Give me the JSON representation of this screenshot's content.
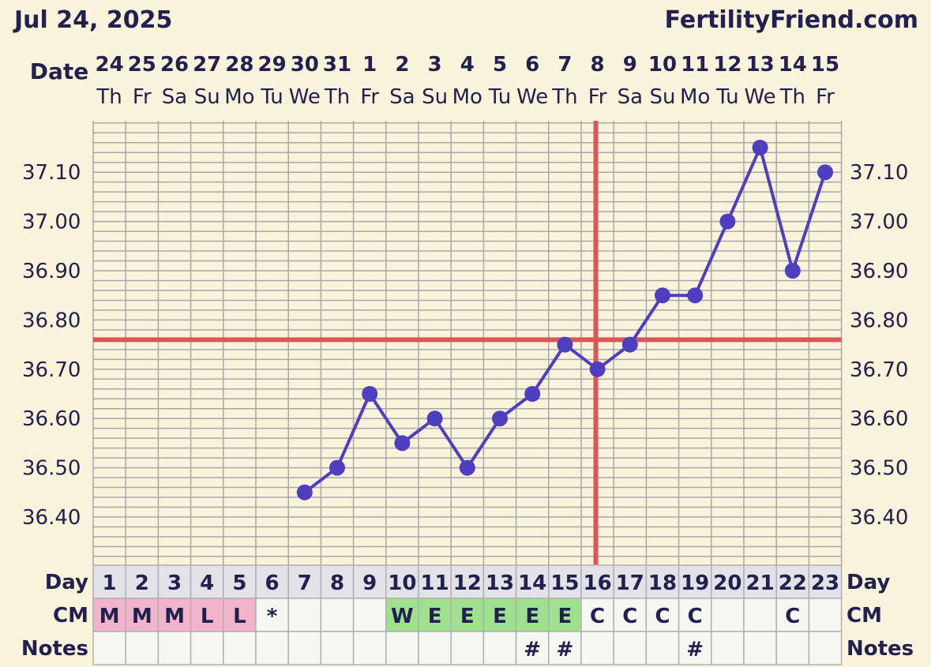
{
  "header": {
    "date": "Jul 24, 2025",
    "site": "FertilityFriend.com"
  },
  "labels": {
    "date": "Date",
    "day": "Day",
    "cm": "CM",
    "notes": "Notes"
  },
  "colors": {
    "background": "#f8f3da",
    "grid": "#a8a8a8",
    "temp_line": "#4f3fc0",
    "coverline": "#d95757",
    "text": "#22204e",
    "menses_cell": "#f2b4ca",
    "egg_white_cell": "#9fe08f",
    "day_row": "#e2e2e8",
    "cell": "#f6f6f3"
  },
  "chart_data": {
    "type": "line",
    "title": "",
    "ylabel": "",
    "ylim": [
      36.3,
      37.2
    ],
    "grid": true,
    "dates": [
      "24",
      "25",
      "26",
      "27",
      "28",
      "29",
      "30",
      "31",
      "1",
      "2",
      "3",
      "4",
      "5",
      "6",
      "7",
      "8",
      "9",
      "10",
      "11",
      "12",
      "13",
      "14",
      "15"
    ],
    "weekdays": [
      "Th",
      "Fr",
      "Sa",
      "Su",
      "Mo",
      "Tu",
      "We",
      "Th",
      "Fr",
      "Sa",
      "Su",
      "Mo",
      "Tu",
      "We",
      "Th",
      "Fr",
      "Sa",
      "Su",
      "Mo",
      "Tu",
      "We",
      "Th",
      "Fr"
    ],
    "cycle_days": [
      "1",
      "2",
      "3",
      "4",
      "5",
      "6",
      "7",
      "8",
      "9",
      "10",
      "11",
      "12",
      "13",
      "14",
      "15",
      "16",
      "17",
      "18",
      "19",
      "20",
      "21",
      "22",
      "23"
    ],
    "y_ticks": [
      "36.40",
      "36.50",
      "36.60",
      "36.70",
      "36.80",
      "36.90",
      "37.00",
      "37.10"
    ],
    "series": [
      {
        "values": [
          null,
          null,
          null,
          null,
          null,
          null,
          36.45,
          36.5,
          36.65,
          36.55,
          36.6,
          36.5,
          36.6,
          36.65,
          36.75,
          36.7,
          36.75,
          36.85,
          36.85,
          37.0,
          37.15,
          36.9,
          37.1
        ]
      }
    ],
    "coverline": 36.76,
    "ovulation_cycle_day": 16,
    "cervical_mucus": [
      "M",
      "M",
      "M",
      "L",
      "L",
      "*",
      "",
      "",
      "",
      "W",
      "E",
      "E",
      "E",
      "E",
      "E",
      "C",
      "C",
      "C",
      "C",
      "",
      "",
      "C",
      ""
    ],
    "notes": [
      "",
      "",
      "",
      "",
      "",
      "",
      "",
      "",
      "",
      "",
      "",
      "",
      "",
      "#",
      "#",
      "",
      "",
      "",
      "#",
      "",
      "",
      "",
      ""
    ]
  }
}
